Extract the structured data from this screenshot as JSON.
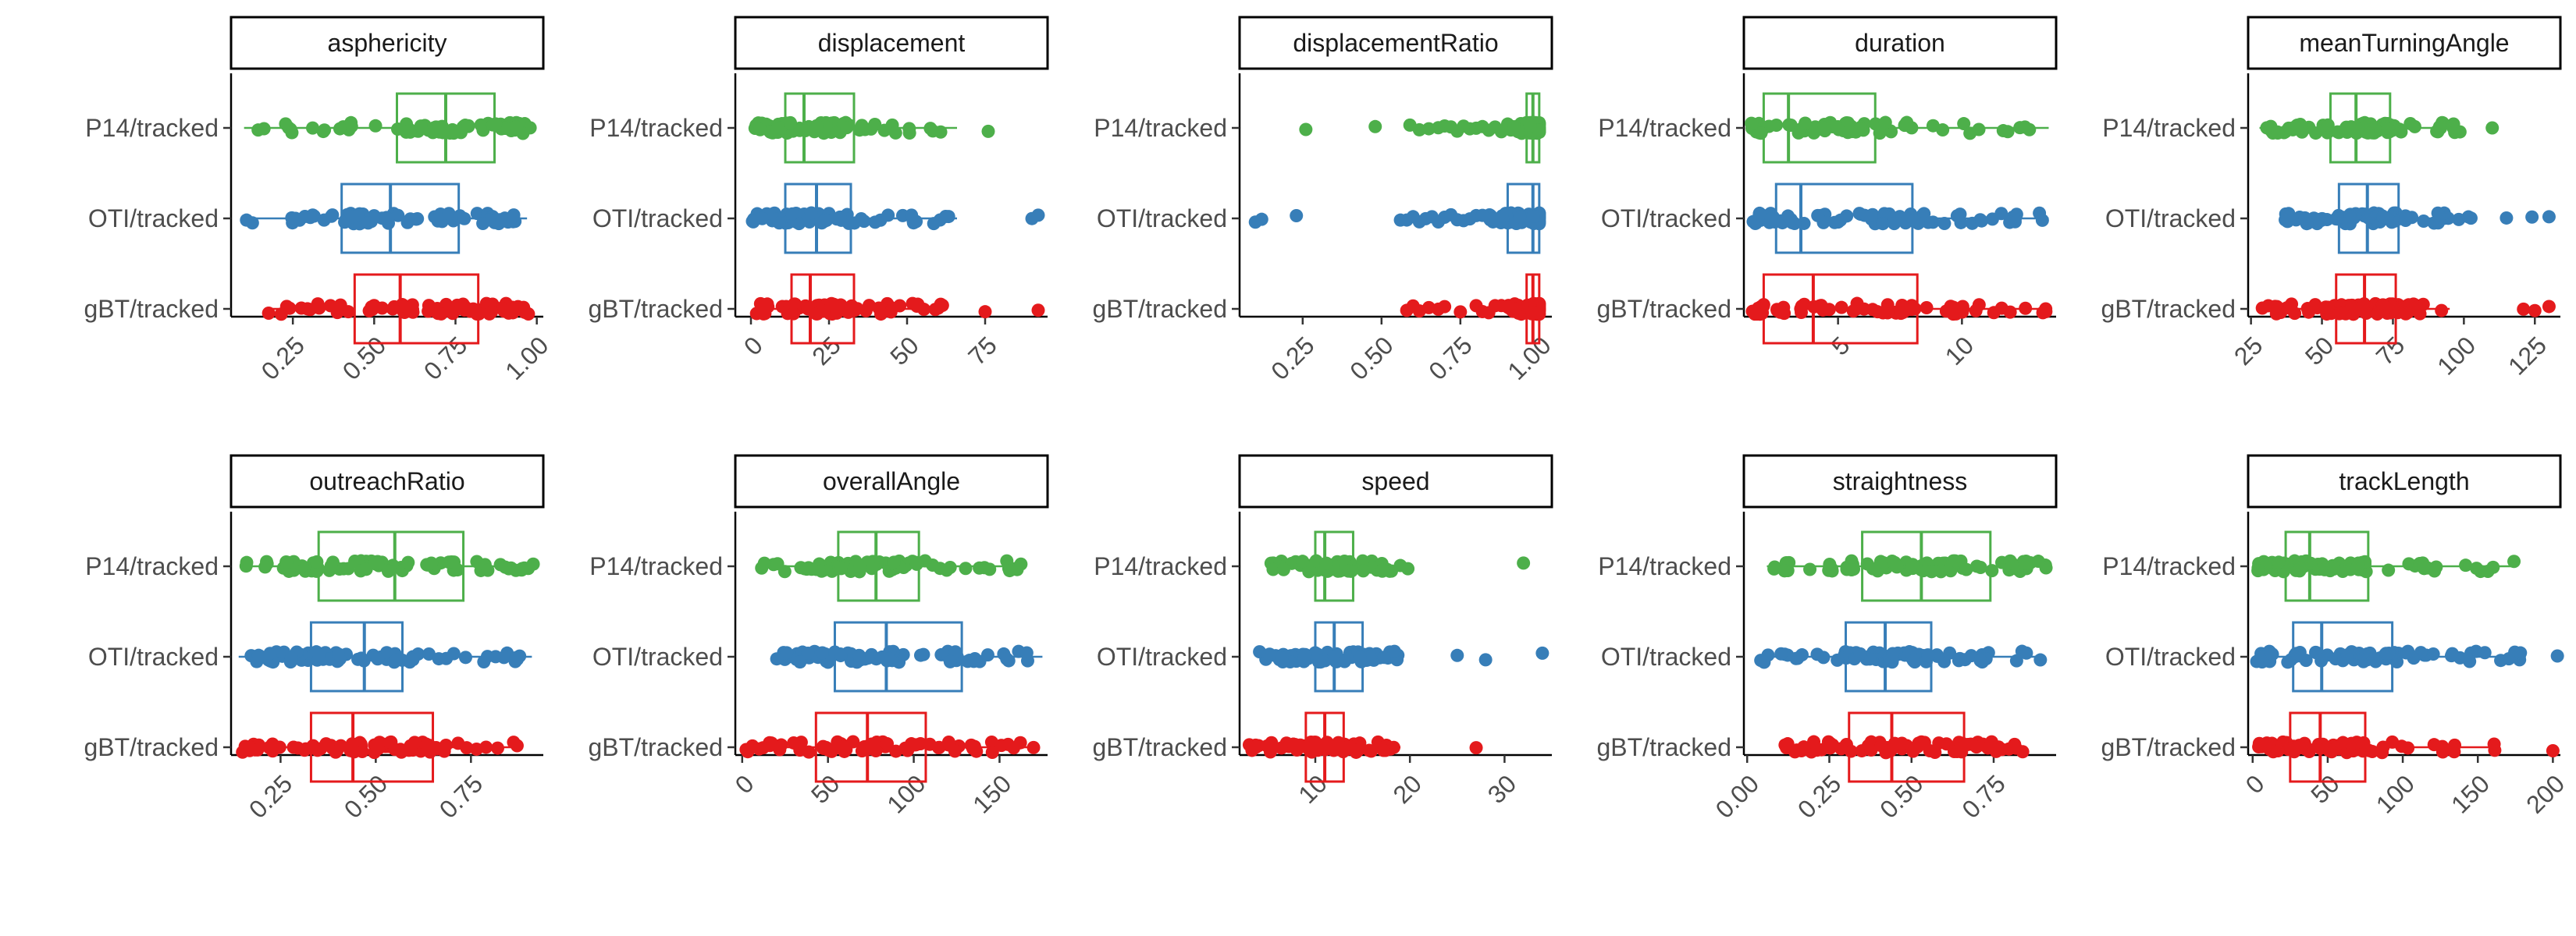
{
  "colors": {
    "P14/tracked": "#4DAF4A",
    "OTI/tracked": "#377EB8",
    "gBT/tracked": "#E41A1C",
    "axis": "#000000",
    "text": "#4d4d4d"
  },
  "categories": [
    "P14/tracked",
    "OTI/tracked",
    "gBT/tracked"
  ],
  "chart_data": [
    {
      "type": "boxplot",
      "title": "asphericity",
      "xlim": [
        0.06,
        1.02
      ],
      "xticks": [
        0.25,
        0.5,
        0.75,
        1.0
      ],
      "xtick_labels": [
        "0.25",
        "0.50",
        "0.75",
        "1.00"
      ],
      "series": [
        {
          "name": "P14/tracked",
          "min": 0.1,
          "q1": 0.57,
          "median": 0.72,
          "q3": 0.87,
          "max": 0.98,
          "outliers": []
        },
        {
          "name": "OTI/tracked",
          "min": 0.1,
          "q1": 0.4,
          "median": 0.55,
          "q3": 0.76,
          "max": 0.97,
          "outliers": []
        },
        {
          "name": "gBT/tracked",
          "min": 0.17,
          "q1": 0.44,
          "median": 0.58,
          "q3": 0.82,
          "max": 0.98,
          "outliers": []
        }
      ]
    },
    {
      "type": "boxplot",
      "title": "displacement",
      "xlim": [
        -5,
        95
      ],
      "xticks": [
        0,
        25,
        50,
        75
      ],
      "xtick_labels": [
        "0",
        "25",
        "50",
        "75"
      ],
      "series": [
        {
          "name": "P14/tracked",
          "min": 1,
          "q1": 11,
          "median": 17,
          "q3": 33,
          "max": 66,
          "outliers": [
            76
          ]
        },
        {
          "name": "OTI/tracked",
          "min": 0,
          "q1": 11,
          "median": 21,
          "q3": 32,
          "max": 66,
          "outliers": [
            90,
            92
          ]
        },
        {
          "name": "gBT/tracked",
          "min": 1,
          "q1": 13,
          "median": 19,
          "q3": 33,
          "max": 63,
          "outliers": [
            75,
            92
          ]
        }
      ]
    },
    {
      "type": "boxplot",
      "title": "displacementRatio",
      "xlim": [
        0.05,
        1.04
      ],
      "xticks": [
        0.25,
        0.5,
        0.75,
        1.0
      ],
      "xtick_labels": [
        "0.25",
        "0.50",
        "0.75",
        "1.00"
      ],
      "series": [
        {
          "name": "P14/tracked",
          "min": 0.93,
          "q1": 0.96,
          "median": 0.98,
          "q3": 1.0,
          "max": 1.0,
          "outliers": [
            0.26,
            0.48,
            0.59,
            0.62,
            0.65,
            0.68,
            0.7,
            0.72,
            0.74,
            0.76,
            0.78,
            0.8,
            0.82,
            0.84,
            0.86,
            0.88,
            0.9,
            0.91,
            0.92
          ]
        },
        {
          "name": "OTI/tracked",
          "min": 0.84,
          "q1": 0.9,
          "median": 0.98,
          "q3": 1.0,
          "max": 1.0,
          "outliers": [
            0.1,
            0.12,
            0.23,
            0.56,
            0.58,
            0.6,
            0.62,
            0.64,
            0.66,
            0.68,
            0.7,
            0.72,
            0.74,
            0.76,
            0.78,
            0.8,
            0.82
          ]
        },
        {
          "name": "gBT/tracked",
          "min": 0.9,
          "q1": 0.96,
          "median": 0.98,
          "q3": 1.0,
          "max": 1.0,
          "outliers": [
            0.58,
            0.6,
            0.62,
            0.65,
            0.68,
            0.7,
            0.75,
            0.8,
            0.82,
            0.84,
            0.86,
            0.88
          ]
        }
      ]
    },
    {
      "type": "boxplot",
      "title": "duration",
      "xlim": [
        1.2,
        13.8
      ],
      "xticks": [
        5,
        10
      ],
      "xtick_labels": [
        "5",
        "10"
      ],
      "series": [
        {
          "name": "P14/tracked",
          "min": 1.5,
          "q1": 2.0,
          "median": 3.0,
          "q3": 6.5,
          "max": 13.5,
          "outliers": []
        },
        {
          "name": "OTI/tracked",
          "min": 1.5,
          "q1": 2.5,
          "median": 3.5,
          "q3": 8.0,
          "max": 13.5,
          "outliers": []
        },
        {
          "name": "gBT/tracked",
          "min": 1.5,
          "q1": 2.0,
          "median": 4.0,
          "q3": 8.2,
          "max": 13.5,
          "outliers": []
        }
      ]
    },
    {
      "type": "boxplot",
      "title": "meanTurningAngle",
      "xlim": [
        24,
        134
      ],
      "xticks": [
        25,
        50,
        75,
        100,
        125
      ],
      "xtick_labels": [
        "25",
        "50",
        "75",
        "100",
        "125"
      ],
      "series": [
        {
          "name": "P14/tracked",
          "min": 28,
          "q1": 53,
          "median": 62,
          "q3": 74,
          "max": 100,
          "outliers": [
            110
          ]
        },
        {
          "name": "OTI/tracked",
          "min": 37,
          "q1": 56,
          "median": 66,
          "q3": 77,
          "max": 104,
          "outliers": [
            115,
            124,
            130
          ]
        },
        {
          "name": "gBT/tracked",
          "min": 31,
          "q1": 55,
          "median": 65,
          "q3": 76,
          "max": 95,
          "outliers": [
            29,
            121,
            125,
            130
          ]
        }
      ]
    },
    {
      "type": "boxplot",
      "title": "outreachRatio",
      "xlim": [
        0.12,
        0.94
      ],
      "xticks": [
        0.25,
        0.5,
        0.75
      ],
      "xtick_labels": [
        "0.25",
        "0.50",
        "0.75"
      ],
      "series": [
        {
          "name": "P14/tracked",
          "min": 0.15,
          "q1": 0.35,
          "median": 0.55,
          "q3": 0.73,
          "max": 0.92,
          "outliers": []
        },
        {
          "name": "OTI/tracked",
          "min": 0.14,
          "q1": 0.33,
          "median": 0.47,
          "q3": 0.57,
          "max": 0.91,
          "outliers": []
        },
        {
          "name": "gBT/tracked",
          "min": 0.15,
          "q1": 0.33,
          "median": 0.44,
          "q3": 0.65,
          "max": 0.88,
          "outliers": []
        }
      ]
    },
    {
      "type": "boxplot",
      "title": "overallAngle",
      "xlim": [
        -4,
        178
      ],
      "xticks": [
        0,
        50,
        100,
        150
      ],
      "xtick_labels": [
        "0",
        "50",
        "100",
        "150"
      ],
      "series": [
        {
          "name": "P14/tracked",
          "min": 8,
          "q1": 56,
          "median": 78,
          "q3": 103,
          "max": 165,
          "outliers": []
        },
        {
          "name": "OTI/tracked",
          "min": 20,
          "q1": 54,
          "median": 84,
          "q3": 128,
          "max": 175,
          "outliers": []
        },
        {
          "name": "gBT/tracked",
          "min": 2,
          "q1": 43,
          "median": 73,
          "q3": 107,
          "max": 170,
          "outliers": []
        }
      ]
    },
    {
      "type": "boxplot",
      "title": "speed",
      "xlim": [
        2,
        35
      ],
      "xticks": [
        10,
        20,
        30
      ],
      "xtick_labels": [
        "10",
        "20",
        "30"
      ],
      "series": [
        {
          "name": "P14/tracked",
          "min": 5,
          "q1": 10,
          "median": 11,
          "q3": 14,
          "max": 20,
          "outliers": [
            32
          ]
        },
        {
          "name": "OTI/tracked",
          "min": 4,
          "q1": 10,
          "median": 12,
          "q3": 15,
          "max": 19,
          "outliers": [
            25,
            28,
            34
          ]
        },
        {
          "name": "gBT/tracked",
          "min": 3,
          "q1": 9,
          "median": 11,
          "q3": 13,
          "max": 19,
          "outliers": [
            27
          ]
        }
      ]
    },
    {
      "type": "boxplot",
      "title": "straightness",
      "xlim": [
        -0.01,
        0.94
      ],
      "xticks": [
        0.0,
        0.25,
        0.5,
        0.75
      ],
      "xtick_labels": [
        "0.00",
        "0.25",
        "0.50",
        "0.75"
      ],
      "series": [
        {
          "name": "P14/tracked",
          "min": 0.06,
          "q1": 0.35,
          "median": 0.53,
          "q3": 0.74,
          "max": 0.92,
          "outliers": []
        },
        {
          "name": "OTI/tracked",
          "min": 0.04,
          "q1": 0.3,
          "median": 0.42,
          "q3": 0.56,
          "max": 0.9,
          "outliers": []
        },
        {
          "name": "gBT/tracked",
          "min": 0.1,
          "q1": 0.31,
          "median": 0.44,
          "q3": 0.66,
          "max": 0.85,
          "outliers": []
        }
      ]
    },
    {
      "type": "boxplot",
      "title": "trackLength",
      "xlim": [
        -3,
        205
      ],
      "xticks": [
        0,
        50,
        100,
        150,
        200
      ],
      "xtick_labels": [
        "0",
        "50",
        "100",
        "150",
        "200"
      ],
      "series": [
        {
          "name": "P14/tracked",
          "min": 3,
          "q1": 22,
          "median": 38,
          "q3": 77,
          "max": 175,
          "outliers": []
        },
        {
          "name": "OTI/tracked",
          "min": 2,
          "q1": 27,
          "median": 46,
          "q3": 93,
          "max": 182,
          "outliers": [
            203
          ]
        },
        {
          "name": "gBT/tracked",
          "min": 3,
          "q1": 25,
          "median": 45,
          "q3": 75,
          "max": 162,
          "outliers": [
            200
          ]
        }
      ]
    }
  ]
}
